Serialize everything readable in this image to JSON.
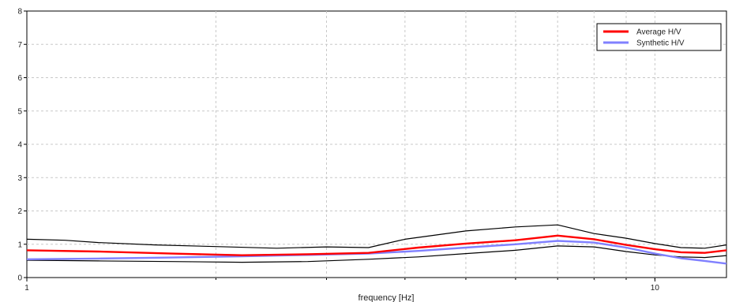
{
  "chart_data": {
    "type": "line",
    "xlabel": "frequency [Hz]",
    "ylabel": "",
    "xscale": "log",
    "xlim": [
      1,
      13
    ],
    "ylim": [
      0,
      8
    ],
    "x_ticks": [
      {
        "value": 1,
        "label": "1"
      },
      {
        "value": 10,
        "label": "10"
      }
    ],
    "y_ticks": [
      0,
      1,
      2,
      3,
      4,
      5,
      6,
      7,
      8
    ],
    "grid": true,
    "legend_position": "top-right",
    "series": [
      {
        "name": "Average H/V",
        "color": "#ff0000",
        "in_legend": true,
        "x": [
          1,
          1.3,
          1.7,
          2.2,
          2.8,
          3.5,
          4.2,
          5,
          6,
          7,
          8,
          9,
          10,
          11,
          12,
          13
        ],
        "y": [
          0.82,
          0.78,
          0.72,
          0.67,
          0.7,
          0.74,
          0.9,
          1.02,
          1.12,
          1.26,
          1.15,
          0.98,
          0.85,
          0.76,
          0.74,
          0.82
        ]
      },
      {
        "name": "Synthetic H/V",
        "color": "#8080ff",
        "in_legend": true,
        "x": [
          1,
          1.3,
          1.7,
          2.2,
          2.8,
          3.5,
          4.2,
          5,
          6,
          7,
          8,
          9,
          10,
          11,
          12,
          13
        ],
        "y": [
          0.55,
          0.57,
          0.6,
          0.64,
          0.68,
          0.72,
          0.8,
          0.9,
          1.0,
          1.1,
          1.05,
          0.9,
          0.72,
          0.58,
          0.5,
          0.42
        ]
      },
      {
        "name": "",
        "color": "#000000",
        "in_legend": false,
        "x": [
          1,
          1.15,
          1.3,
          1.6,
          2.0,
          2.5,
          3.0,
          3.5,
          4.0,
          5,
          6,
          7,
          8,
          9,
          10,
          11,
          12,
          13
        ],
        "y": [
          1.15,
          1.12,
          1.05,
          0.98,
          0.93,
          0.88,
          0.92,
          0.9,
          1.15,
          1.4,
          1.52,
          1.58,
          1.32,
          1.18,
          1.02,
          0.9,
          0.88,
          0.98
        ]
      },
      {
        "name": "",
        "color": "#000000",
        "in_legend": false,
        "x": [
          1,
          1.3,
          1.7,
          2.2,
          2.8,
          3.5,
          4.2,
          5,
          6,
          7,
          8,
          9,
          10,
          11,
          12,
          13
        ],
        "y": [
          0.52,
          0.5,
          0.48,
          0.46,
          0.48,
          0.55,
          0.62,
          0.72,
          0.82,
          0.95,
          0.92,
          0.78,
          0.68,
          0.62,
          0.6,
          0.66
        ]
      }
    ]
  }
}
